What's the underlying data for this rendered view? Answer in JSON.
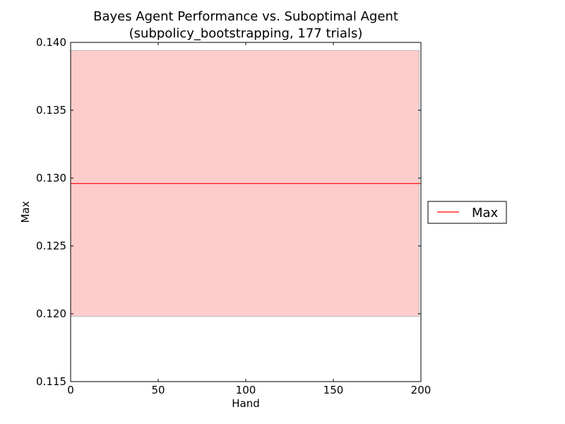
{
  "chart_data": {
    "type": "line",
    "title": "Bayes Agent Performance vs. Suboptimal Agent",
    "subtitle": "(subpolicy_bootstrapping, 177 trials)",
    "xlabel": "Hand",
    "ylabel": "Max",
    "xlim": [
      0,
      200
    ],
    "ylim": [
      0.115,
      0.14
    ],
    "x_ticks": [
      0,
      50,
      100,
      150,
      200
    ],
    "x_tick_labels": [
      "0",
      "50",
      "100",
      "150",
      "200"
    ],
    "y_ticks": [
      0.115,
      0.12,
      0.125,
      0.13,
      0.135,
      0.14
    ],
    "y_tick_labels": [
      "0.115",
      "0.120",
      "0.125",
      "0.130",
      "0.135",
      "0.140"
    ],
    "grid": false,
    "legend_position": "right",
    "series": [
      {
        "name": "Max",
        "color": "#ff0000",
        "x": [
          0,
          200
        ],
        "y": [
          0.1296,
          0.1296
        ],
        "band": {
          "x": [
            0,
            199
          ],
          "lower": [
            0.1198,
            0.1198
          ],
          "upper": [
            0.1394,
            0.1394
          ],
          "fill_color": "#ffcccc",
          "edge_color": "#bbbbbb"
        }
      }
    ]
  }
}
